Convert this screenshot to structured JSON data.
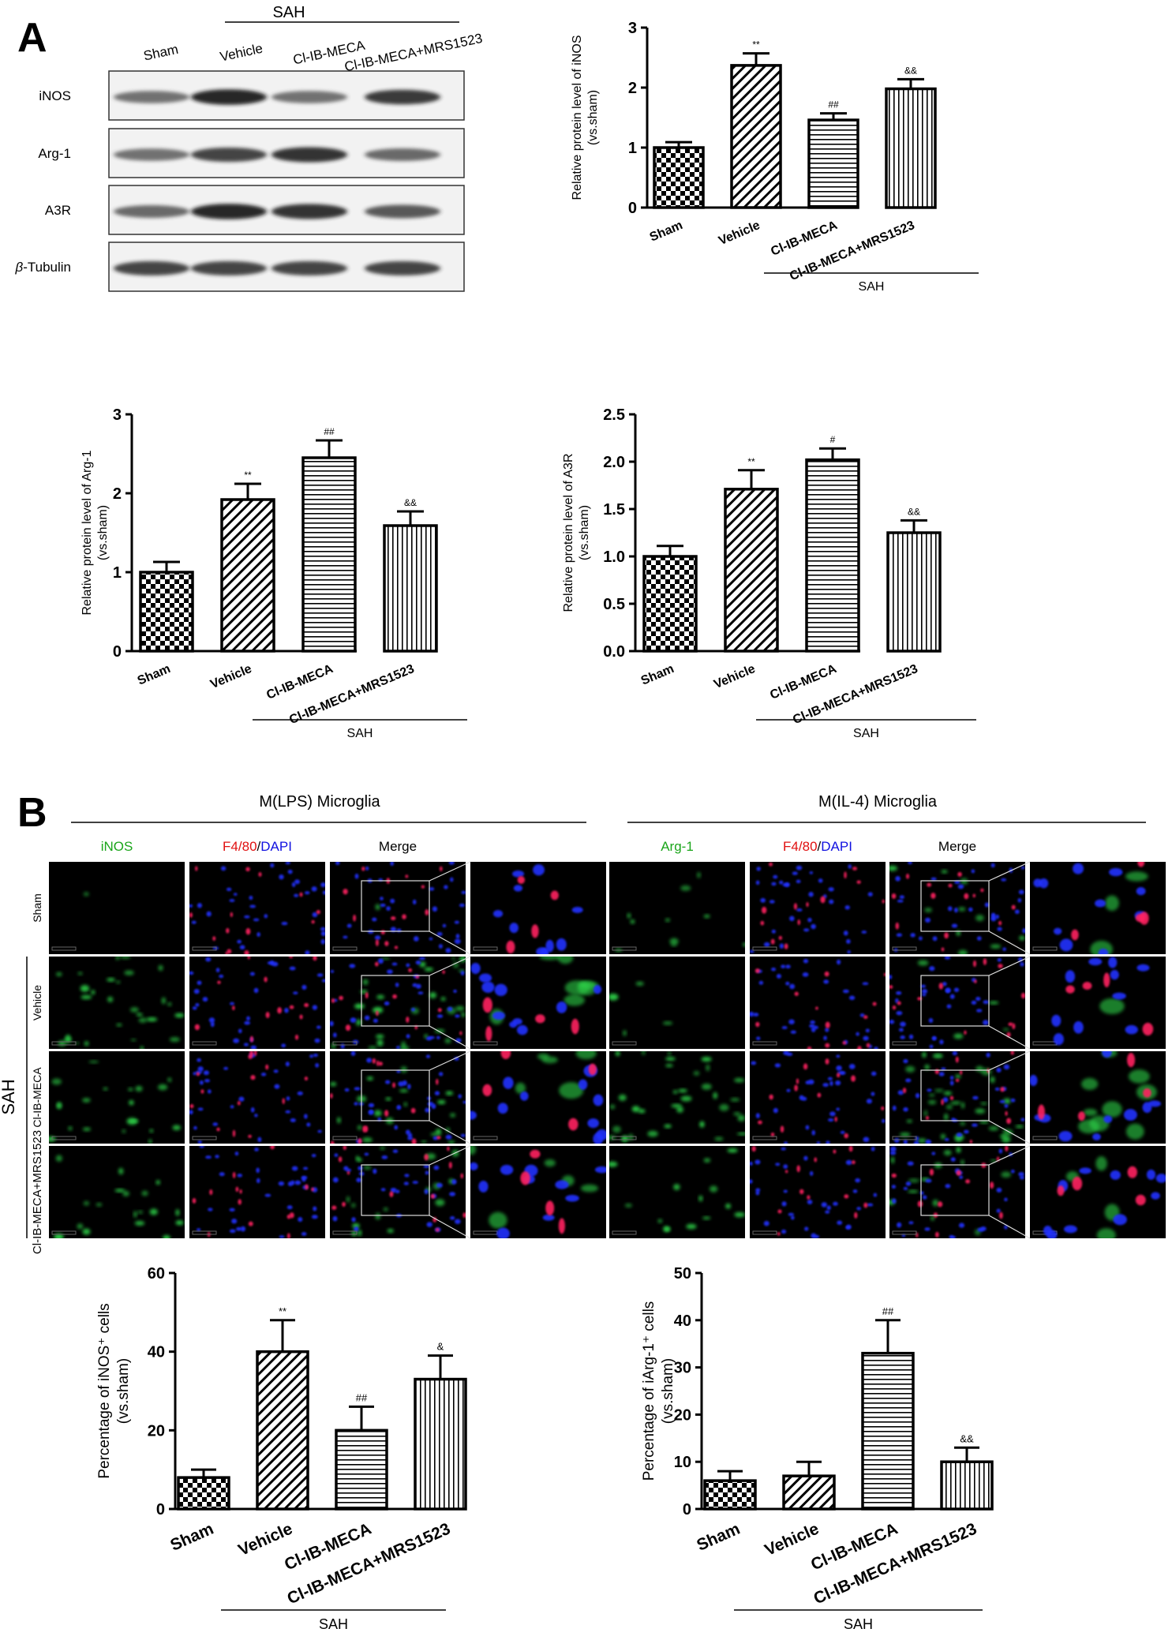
{
  "panel_a": {
    "letter": "A",
    "western_blot": {
      "group_label": "SAH",
      "lanes": [
        "Sham",
        "Vehicle",
        "Cl-IB-MECA",
        "Cl-IB-MECA+MRS1523"
      ],
      "rows": [
        {
          "label": "iNOS",
          "intensity": [
            0.55,
            0.95,
            0.55,
            0.85
          ]
        },
        {
          "label": "Arg-1",
          "intensity": [
            0.55,
            0.8,
            0.9,
            0.6
          ]
        },
        {
          "label": "A3R",
          "intensity": [
            0.6,
            0.95,
            0.9,
            0.7
          ]
        },
        {
          "label_prefix": "β",
          "label": "-Tubulin",
          "intensity": [
            0.8,
            0.8,
            0.8,
            0.8
          ]
        }
      ]
    }
  },
  "panel_b": {
    "letter": "B",
    "section_lps": "M(LPS) Microglia",
    "section_il4": "M(IL-4) Microglia",
    "col_labels_lps": {
      "green": "iNOS",
      "red_part": "F4/80",
      "sep": "/",
      "blue_part": "DAPI",
      "merge": "Merge"
    },
    "col_labels_il4": {
      "green": "Arg-1",
      "red_part": "F4/80",
      "sep": "/",
      "blue_part": "DAPI",
      "merge": "Merge"
    },
    "row_labels": [
      "Sham",
      "Vehicle",
      "Cl-IB-MECA",
      "Cl-IB-MECA+MRS1523"
    ],
    "group_label": "SAH",
    "green_density_lps": [
      0.02,
      0.7,
      0.5,
      0.45
    ],
    "green_density_il4": [
      0.25,
      0.1,
      0.85,
      0.35
    ]
  },
  "chart_data": [
    {
      "type": "bar",
      "categories": [
        "Sham",
        "Vehicle",
        "Cl-IB-MECA",
        "Cl-IB-MECA+MRS1523"
      ],
      "values": [
        1.0,
        2.37,
        1.46,
        1.98
      ],
      "errors": [
        0.09,
        0.2,
        0.11,
        0.16
      ],
      "annotations": [
        "",
        "**",
        "##",
        "&&"
      ],
      "ylabel_line1": "Relative protein level of iNOS",
      "ylabel_line2": "(vs.sham)",
      "ylim": [
        0,
        3
      ],
      "yticks": [
        "0",
        "1",
        "2",
        "3"
      ],
      "ytick_values": [
        0,
        1,
        2,
        3
      ],
      "group_label": "SAH",
      "patterns": [
        "checker",
        "diag",
        "hstripe",
        "vstripe"
      ]
    },
    {
      "type": "bar",
      "categories": [
        "Sham",
        "Vehicle",
        "Cl-IB-MECA",
        "Cl-IB-MECA+MRS1523"
      ],
      "values": [
        1.0,
        1.92,
        2.45,
        1.59
      ],
      "errors": [
        0.13,
        0.2,
        0.22,
        0.18
      ],
      "annotations": [
        "",
        "**",
        "##",
        "&&"
      ],
      "ylabel_line1": "Relative protein level of Arg-1",
      "ylabel_line2": "(vs.sham)",
      "ylim": [
        0,
        3
      ],
      "yticks": [
        "0",
        "1",
        "2",
        "3"
      ],
      "ytick_values": [
        0,
        1,
        2,
        3
      ],
      "group_label": "SAH",
      "patterns": [
        "checker",
        "diag",
        "hstripe",
        "vstripe"
      ]
    },
    {
      "type": "bar",
      "categories": [
        "Sham",
        "Vehicle",
        "Cl-IB-MECA",
        "Cl-IB-MECA+MRS1523"
      ],
      "values": [
        1.0,
        1.71,
        2.02,
        1.25
      ],
      "errors": [
        0.11,
        0.2,
        0.12,
        0.13
      ],
      "annotations": [
        "",
        "**",
        "#",
        "&&"
      ],
      "ylabel_line1": "Relative protein level of A3R",
      "ylabel_line2": "(vs.sham)",
      "ylim": [
        0,
        2.5
      ],
      "yticks": [
        "0.0",
        "0.5",
        "1.0",
        "1.5",
        "2.0",
        "2.5"
      ],
      "ytick_values": [
        0,
        0.5,
        1.0,
        1.5,
        2.0,
        2.5
      ],
      "group_label": "SAH",
      "patterns": [
        "checker",
        "diag",
        "hstripe",
        "vstripe"
      ]
    },
    {
      "type": "bar",
      "categories": [
        "Sham",
        "Vehicle",
        "Cl-IB-MECA",
        "Cl-IB-MECA+MRS1523"
      ],
      "values": [
        8,
        40,
        20,
        33
      ],
      "errors": [
        2,
        8,
        6,
        6
      ],
      "annotations": [
        "",
        "**",
        "##",
        "&"
      ],
      "ylabel_line1": "Percentage of iNOS⁺ cells",
      "ylabel_line2": "(vs.sham)",
      "ylim": [
        0,
        60
      ],
      "yticks": [
        "0",
        "20",
        "40",
        "60"
      ],
      "ytick_values": [
        0,
        20,
        40,
        60
      ],
      "group_label": "SAH",
      "patterns": [
        "checker",
        "diag",
        "hstripe",
        "vstripe"
      ]
    },
    {
      "type": "bar",
      "categories": [
        "Sham",
        "Vehicle",
        "Cl-IB-MECA",
        "Cl-IB-MECA+MRS1523"
      ],
      "values": [
        6,
        7,
        33,
        10
      ],
      "errors": [
        2,
        3,
        7,
        3
      ],
      "annotations": [
        "",
        "",
        "##",
        "&&"
      ],
      "ylabel_line1": "Percentage of iArg-1⁺ cells",
      "ylabel_line2": "(vs.sham)",
      "ylim": [
        0,
        50
      ],
      "yticks": [
        "0",
        "10",
        "20",
        "30",
        "40",
        "50"
      ],
      "ytick_values": [
        0,
        10,
        20,
        30,
        40,
        50
      ],
      "group_label": "SAH",
      "patterns": [
        "checker",
        "diag",
        "hstripe",
        "vstripe"
      ]
    }
  ]
}
